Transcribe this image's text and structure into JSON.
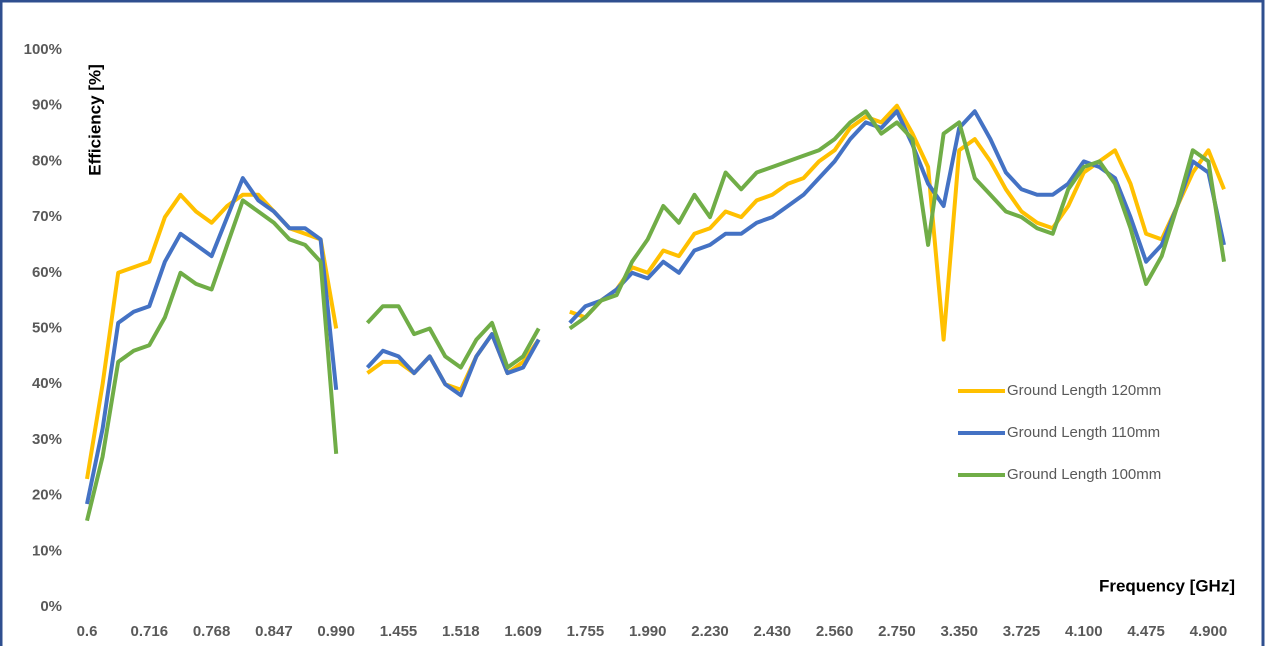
{
  "chart_data": {
    "type": "line",
    "x_label": "Frequency [GHz]",
    "y_label": "Efficiency [%]",
    "categories": [
      "0.6",
      null,
      null,
      null,
      "0.716",
      null,
      null,
      null,
      "0.768",
      null,
      null,
      null,
      "0.847",
      null,
      null,
      null,
      "0.990",
      null,
      null,
      null,
      "1.455",
      null,
      null,
      null,
      "1.518",
      null,
      null,
      null,
      "1.609",
      null,
      null,
      null,
      "1.755",
      null,
      null,
      null,
      "1.990",
      null,
      null,
      null,
      "2.230",
      null,
      null,
      null,
      "2.430",
      null,
      null,
      null,
      "2.560",
      null,
      null,
      null,
      "2.750",
      null,
      null,
      null,
      "3.350",
      null,
      null,
      null,
      "3.725",
      null,
      null,
      null,
      "4.100",
      null,
      null,
      null,
      "4.475",
      null,
      null,
      null,
      "4.900",
      null
    ],
    "series": [
      {
        "name": "Ground Length 120mm",
        "color": "#ffc000",
        "values": [
          23,
          40,
          60,
          61,
          62,
          70,
          74,
          71,
          69,
          72,
          74,
          74,
          71,
          68,
          67,
          66,
          50,
          null,
          42,
          44,
          44,
          42,
          45,
          40,
          39,
          45,
          49,
          42,
          44,
          48,
          null,
          53,
          52,
          55,
          57,
          61,
          60,
          64,
          63,
          67,
          68,
          71,
          70,
          73,
          74,
          76,
          77,
          80,
          82,
          86,
          88,
          87,
          90,
          85,
          79,
          48,
          82,
          84,
          80,
          75,
          71,
          69,
          68,
          72,
          78,
          80,
          82,
          76,
          67,
          66,
          72,
          78,
          82,
          75
        ]
      },
      {
        "name": "Ground Length 110mm",
        "color": "#4472c4",
        "values": [
          18.5,
          32,
          51,
          53,
          54,
          62,
          67,
          65,
          63,
          70,
          77,
          73,
          71,
          68,
          68,
          66,
          39,
          null,
          43,
          46,
          45,
          42,
          45,
          40,
          38,
          45,
          49,
          42,
          43,
          48,
          null,
          51,
          54,
          55,
          57,
          60,
          59,
          62,
          60,
          64,
          65,
          67,
          67,
          69,
          70,
          72,
          74,
          77,
          80,
          84,
          87,
          86,
          89,
          83,
          76,
          72,
          86,
          89,
          84,
          78,
          75,
          74,
          74,
          76,
          80,
          79,
          77,
          70,
          62,
          65,
          72,
          80,
          78,
          65
        ]
      },
      {
        "name": "Ground Length 100mm",
        "color": "#70ad47",
        "values": [
          15.5,
          27,
          44,
          46,
          47,
          52,
          60,
          58,
          57,
          65,
          73,
          71,
          69,
          66,
          65,
          62,
          27.5,
          null,
          51,
          54,
          54,
          49,
          50,
          45,
          43,
          48,
          51,
          43,
          45,
          50,
          null,
          50,
          52,
          55,
          56,
          62,
          66,
          72,
          69,
          74,
          70,
          78,
          75,
          78,
          79,
          80,
          81,
          82,
          84,
          87,
          89,
          85,
          87,
          84,
          65,
          85,
          87,
          77,
          74,
          71,
          70,
          68,
          67,
          75,
          79,
          80,
          76,
          68,
          58,
          63,
          72,
          82,
          80,
          62
        ]
      }
    ],
    "ylim": [
      0,
      100
    ],
    "yticks": [
      {
        "value": 0,
        "label": "0%"
      },
      {
        "value": 10,
        "label": "10%"
      },
      {
        "value": 20,
        "label": "20%"
      },
      {
        "value": 30,
        "label": "30%"
      },
      {
        "value": 40,
        "label": "40%"
      },
      {
        "value": 50,
        "label": "50%"
      },
      {
        "value": 60,
        "label": "60%"
      },
      {
        "value": 70,
        "label": "70%"
      },
      {
        "value": 80,
        "label": "80%"
      },
      {
        "value": 90,
        "label": "90%"
      },
      {
        "value": 100,
        "label": "100%"
      }
    ],
    "grid": false,
    "legend_position": "right"
  }
}
